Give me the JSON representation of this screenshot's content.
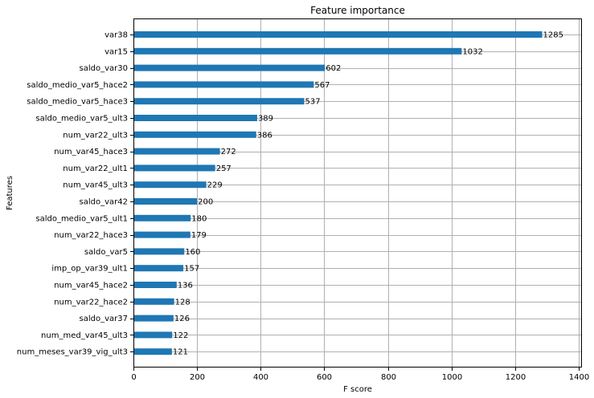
{
  "chart_data": {
    "type": "bar",
    "orientation": "horizontal",
    "title": "Feature importance",
    "xlabel": "F score",
    "ylabel": "Features",
    "xlim": [
      0,
      1410
    ],
    "xticks": [
      0,
      200,
      400,
      600,
      800,
      1000,
      1200,
      1400
    ],
    "grid": true,
    "categories": [
      "var38",
      "var15",
      "saldo_var30",
      "saldo_medio_var5_hace2",
      "saldo_medio_var5_hace3",
      "saldo_medio_var5_ult3",
      "num_var22_ult3",
      "num_var45_hace3",
      "num_var22_ult1",
      "num_var45_ult3",
      "saldo_var42",
      "saldo_medio_var5_ult1",
      "num_var22_hace3",
      "saldo_var5",
      "imp_op_var39_ult1",
      "num_var45_hace2",
      "num_var22_hace2",
      "saldo_var37",
      "num_med_var45_ult3",
      "num_meses_var39_vig_ult3"
    ],
    "values": [
      1285,
      1032,
      602,
      567,
      537,
      389,
      386,
      272,
      257,
      229,
      200,
      180,
      179,
      160,
      157,
      136,
      128,
      126,
      122,
      121
    ],
    "bar_color": "#1f77b4",
    "grid_color": "#b0b0b0"
  }
}
